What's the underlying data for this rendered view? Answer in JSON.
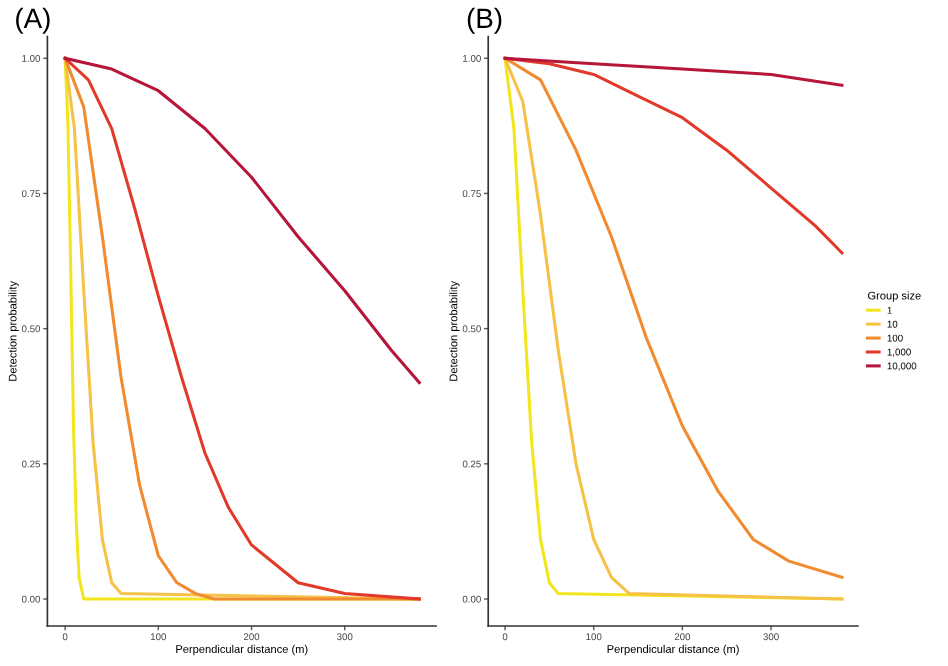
{
  "chart_data": [
    {
      "type": "line",
      "title": "(A)",
      "xlabel": "Perpendicular distance (m)",
      "ylabel": "Detection probability",
      "xlim": [
        -19,
        398
      ],
      "ylim": [
        -0.05,
        1.04
      ],
      "xticks": [
        0,
        100,
        200,
        300
      ],
      "yticks": [
        {
          "value": 0,
          "label": "0.00"
        },
        {
          "value": 0.25,
          "label": "0.25"
        },
        {
          "value": 0.5,
          "label": "0.50"
        },
        {
          "value": 0.75,
          "label": "0.75"
        },
        {
          "value": 1,
          "label": "1.00"
        }
      ],
      "grid": false,
      "series": [
        {
          "color": "#f2e51d",
          "x": [
            0,
            3,
            6,
            9,
            12,
            15,
            20,
            380
          ],
          "values": [
            1,
            0.88,
            0.61,
            0.32,
            0.14,
            0.04,
            0,
            0
          ]
        },
        {
          "color": "#f5c247",
          "x": [
            0,
            10,
            20,
            30,
            40,
            50,
            60,
            380
          ],
          "values": [
            1,
            0.87,
            0.57,
            0.29,
            0.11,
            0.03,
            0.01,
            0
          ]
        },
        {
          "color": "#f28a30",
          "x": [
            0,
            20,
            40,
            60,
            80,
            100,
            120,
            140,
            160,
            380
          ],
          "values": [
            1,
            0.91,
            0.67,
            0.41,
            0.21,
            0.08,
            0.03,
            0.01,
            0,
            0
          ]
        },
        {
          "color": "#e23a2a",
          "x": [
            0,
            25,
            50,
            75,
            100,
            125,
            150,
            175,
            200,
            250,
            300,
            380
          ],
          "values": [
            1,
            0.96,
            0.87,
            0.72,
            0.56,
            0.41,
            0.27,
            0.17,
            0.1,
            0.03,
            0.01,
            0
          ]
        },
        {
          "color": "#b5163a",
          "x": [
            0,
            50,
            100,
            150,
            200,
            250,
            300,
            350,
            380
          ],
          "values": [
            1,
            0.98,
            0.94,
            0.87,
            0.78,
            0.67,
            0.57,
            0.46,
            0.4
          ]
        }
      ]
    },
    {
      "type": "line",
      "title": "(B)",
      "xlabel": "Perpendicular distance (m)",
      "ylabel": "Detection probability",
      "xlim": [
        -19,
        398
      ],
      "ylim": [
        -0.05,
        1.04
      ],
      "xticks": [
        0,
        100,
        200,
        300
      ],
      "yticks": [
        {
          "value": 0,
          "label": "0.00"
        },
        {
          "value": 0.25,
          "label": "0.25"
        },
        {
          "value": 0.5,
          "label": "0.50"
        },
        {
          "value": 0.75,
          "label": "0.75"
        },
        {
          "value": 1,
          "label": "1.00"
        }
      ],
      "grid": false,
      "legend": "right",
      "legend_title": "Group size",
      "series": [
        {
          "name": "1",
          "color": "#f2e51d",
          "x": [
            0,
            10,
            20,
            30,
            40,
            50,
            60,
            380
          ],
          "values": [
            1,
            0.87,
            0.57,
            0.29,
            0.11,
            0.03,
            0.01,
            0
          ]
        },
        {
          "name": "10",
          "color": "#f5c247",
          "x": [
            0,
            20,
            40,
            60,
            80,
            100,
            120,
            140,
            380
          ],
          "values": [
            1,
            0.92,
            0.71,
            0.46,
            0.25,
            0.11,
            0.04,
            0.01,
            0
          ]
        },
        {
          "name": "100",
          "color": "#f28a30",
          "x": [
            0,
            40,
            80,
            120,
            160,
            200,
            240,
            280,
            320,
            380
          ],
          "values": [
            1,
            0.96,
            0.83,
            0.67,
            0.48,
            0.32,
            0.2,
            0.11,
            0.07,
            0.04
          ]
        },
        {
          "name": "1,000",
          "color": "#e23a2a",
          "x": [
            0,
            50,
            100,
            150,
            200,
            250,
            300,
            350,
            380
          ],
          "values": [
            1,
            0.99,
            0.97,
            0.93,
            0.89,
            0.83,
            0.76,
            0.69,
            0.64
          ]
        },
        {
          "name": "10,000",
          "color": "#b5163a",
          "x": [
            0,
            100,
            200,
            300,
            380
          ],
          "values": [
            1,
            0.99,
            0.98,
            0.97,
            0.95
          ]
        }
      ]
    }
  ]
}
